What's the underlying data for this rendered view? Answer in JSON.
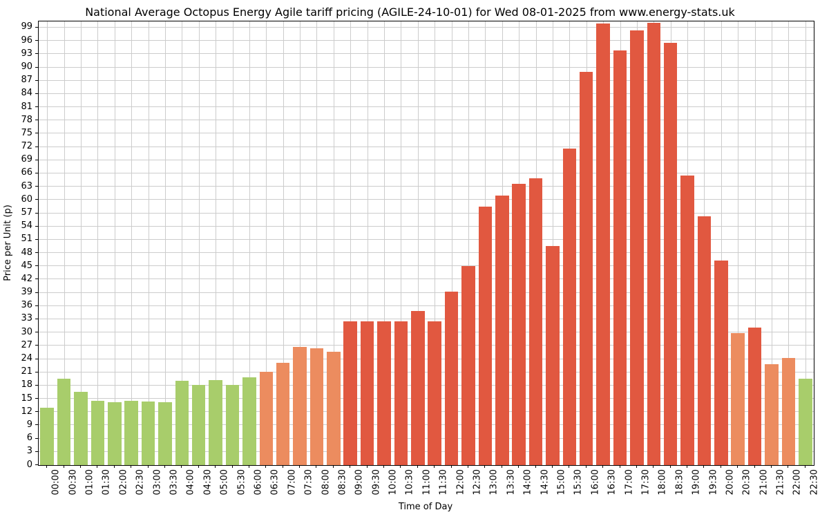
{
  "chart_data": {
    "type": "bar",
    "title": "National Average Octopus Energy Agile tariff pricing (AGILE-24-10-01) for Wed 08-01-2025 from www.energy-stats.uk",
    "xlabel": "Time of Day",
    "ylabel": "Price per Unit (p)",
    "ylim": [
      0,
      100.4
    ],
    "ytick_step": 3,
    "ytick_max": 99,
    "grid": true,
    "legend": "none",
    "categories": [
      "00:00",
      "00:30",
      "01:00",
      "01:30",
      "02:00",
      "02:30",
      "03:00",
      "03:30",
      "04:00",
      "04:30",
      "05:00",
      "05:30",
      "06:00",
      "06:30",
      "07:00",
      "07:30",
      "08:00",
      "08:30",
      "09:00",
      "09:30",
      "10:00",
      "10:30",
      "11:00",
      "11:30",
      "12:00",
      "12:30",
      "13:00",
      "13:30",
      "14:00",
      "14:30",
      "15:00",
      "15:30",
      "16:00",
      "16:30",
      "17:00",
      "17:30",
      "18:00",
      "18:30",
      "19:00",
      "19:30",
      "20:00",
      "20:30",
      "21:00",
      "21:30",
      "22:00",
      "22:30"
    ],
    "values": [
      13.0,
      19.5,
      16.6,
      14.5,
      14.2,
      14.5,
      14.4,
      14.2,
      19.1,
      18.1,
      19.3,
      18.1,
      19.8,
      21.1,
      23.2,
      26.8,
      26.5,
      25.7,
      32.5,
      32.5,
      32.6,
      32.6,
      34.8,
      32.6,
      39.2,
      45.1,
      58.5,
      61.0,
      63.7,
      64.9,
      49.5,
      71.6,
      89.0,
      100.0,
      93.8,
      98.3,
      100.1,
      95.6,
      65.6,
      56.3,
      46.3,
      29.8,
      31.1,
      22.9,
      24.2,
      19.6
    ],
    "bar_colors": [
      "green",
      "green",
      "green",
      "green",
      "green",
      "green",
      "green",
      "green",
      "green",
      "green",
      "green",
      "green",
      "green",
      "orange",
      "orange",
      "orange",
      "orange",
      "orange",
      "red",
      "red",
      "red",
      "red",
      "red",
      "red",
      "red",
      "red",
      "red",
      "red",
      "red",
      "red",
      "red",
      "red",
      "red",
      "red",
      "red",
      "red",
      "red",
      "red",
      "red",
      "red",
      "red",
      "orange",
      "red",
      "orange",
      "orange",
      "green"
    ],
    "color_map": {
      "green": "#a8cd6b",
      "orange": "#ec8c5f",
      "red": "#e15840"
    },
    "grid_color": "#cccccc",
    "axis_color": "#000000",
    "background": "#ffffff"
  }
}
